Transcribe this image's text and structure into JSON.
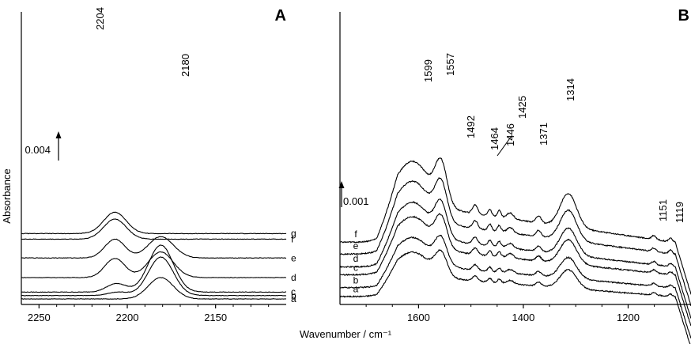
{
  "chart_data": [
    {
      "panel": "A",
      "type": "line",
      "xlim": [
        2260,
        2110
      ],
      "x_ticks": [
        2250,
        2200,
        2150
      ],
      "ylabel": "Absorbance",
      "scale_bar": {
        "label": "0.004",
        "value": 0.004
      },
      "peak_labels": [
        "2204",
        "2180"
      ],
      "series": [
        {
          "name": "a",
          "baseline": 0.0,
          "peaks": [
            {
              "x": 2181,
              "height": 0.005,
              "width": 10
            }
          ]
        },
        {
          "name": "b",
          "baseline": 0.0008,
          "peaks": [
            {
              "x": 2205,
              "height": 0.0008,
              "width": 8
            },
            {
              "x": 2181,
              "height": 0.009,
              "width": 10
            }
          ]
        },
        {
          "name": "c",
          "baseline": 0.0016,
          "peaks": [
            {
              "x": 2206,
              "height": 0.002,
              "width": 8
            },
            {
              "x": 2181,
              "height": 0.011,
              "width": 10
            }
          ]
        },
        {
          "name": "d",
          "baseline": 0.005,
          "peaks": [
            {
              "x": 2207,
              "height": 0.0045,
              "width": 8
            },
            {
              "x": 2181,
              "height": 0.006,
              "width": 10
            }
          ]
        },
        {
          "name": "e",
          "baseline": 0.0096,
          "peaks": [
            {
              "x": 2207,
              "height": 0.0044,
              "width": 8
            },
            {
              "x": 2181,
              "height": 0.005,
              "width": 10
            }
          ]
        },
        {
          "name": "f",
          "baseline": 0.014,
          "peaks": [
            {
              "x": 2207,
              "height": 0.0047,
              "width": 9
            }
          ]
        },
        {
          "name": "g",
          "baseline": 0.0153,
          "peaks": [
            {
              "x": 2207,
              "height": 0.005,
              "width": 9
            }
          ]
        }
      ]
    },
    {
      "panel": "B",
      "type": "line",
      "xlim": [
        1750,
        1080
      ],
      "x_ticks": [
        1600,
        1400,
        1200
      ],
      "scale_bar": {
        "label": "0.001",
        "value": 0.001
      },
      "peak_labels": [
        "1599",
        "1557",
        "1492",
        "1464",
        "1446",
        "1425",
        "1371",
        "1314",
        "1151",
        "1119"
      ],
      "series": [
        {
          "name": "a",
          "baseline": 0.0,
          "scale": 0.55
        },
        {
          "name": "b",
          "baseline": 0.00045,
          "scale": 0.62
        },
        {
          "name": "c",
          "baseline": 0.0011,
          "scale": 0.72
        },
        {
          "name": "d",
          "baseline": 0.0015,
          "scale": 0.8
        },
        {
          "name": "e",
          "baseline": 0.00215,
          "scale": 0.9
        },
        {
          "name": "f",
          "baseline": 0.00275,
          "scale": 1.0
        }
      ]
    }
  ],
  "panel_letters": {
    "a": "A",
    "b": "B"
  },
  "x_axis_title": "Wavenumber / cm⁻¹"
}
